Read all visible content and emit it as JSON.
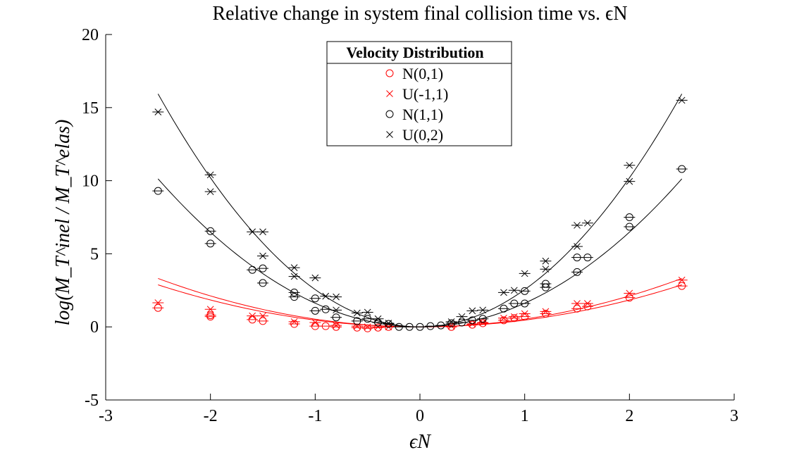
{
  "chart_data": {
    "type": "scatter",
    "title": "Relative change in system final collision time vs. ϵN",
    "xlabel": "ϵN",
    "ylabel": "log(M_T^inel / M_T^elas)",
    "xlim": [
      -3,
      3
    ],
    "ylim": [
      -5,
      20
    ],
    "xticks": [
      "-3",
      "-2",
      "-1",
      "0",
      "1",
      "2",
      "3"
    ],
    "yticks": [
      "-5",
      "0",
      "5",
      "10",
      "15",
      "20"
    ],
    "legend_title": "Velocity Distribution",
    "legend_position": "top-center",
    "colors": {
      "red": "#ff0000",
      "black": "#000000"
    },
    "series": [
      {
        "name": "N(0,1)",
        "marker": "circle",
        "color": "#ff0000",
        "fit_coeff": 0.46,
        "points": [
          [
            -2.5,
            1.3
          ],
          [
            -2.0,
            0.8
          ],
          [
            -2.0,
            0.7
          ],
          [
            -1.6,
            0.5
          ],
          [
            -1.5,
            0.4
          ],
          [
            -1.2,
            0.2
          ],
          [
            -1.0,
            0.05
          ],
          [
            -0.9,
            0.05
          ],
          [
            -0.8,
            0.0
          ],
          [
            -0.6,
            -0.05
          ],
          [
            -0.5,
            -0.1
          ],
          [
            -0.4,
            -0.05
          ],
          [
            -0.3,
            0.0
          ],
          [
            0.3,
            0.0
          ],
          [
            0.5,
            0.15
          ],
          [
            0.6,
            0.25
          ],
          [
            0.8,
            0.45
          ],
          [
            0.9,
            0.6
          ],
          [
            1.0,
            0.7
          ],
          [
            1.2,
            0.9
          ],
          [
            1.5,
            1.25
          ],
          [
            1.6,
            1.4
          ],
          [
            2.0,
            2.0
          ],
          [
            2.5,
            2.8
          ]
        ]
      },
      {
        "name": "U(-1,1)",
        "marker": "x",
        "color": "#ff0000",
        "fit_coeff": 0.53,
        "points": [
          [
            -2.5,
            1.65
          ],
          [
            -2.0,
            1.2
          ],
          [
            -1.6,
            0.75
          ],
          [
            -1.5,
            0.75
          ],
          [
            -1.2,
            0.35
          ],
          [
            -1.0,
            0.3
          ],
          [
            -0.8,
            0.1
          ],
          [
            -0.6,
            0.05
          ],
          [
            -0.5,
            0.0
          ],
          [
            -0.4,
            0.0
          ],
          [
            -0.3,
            0.0
          ],
          [
            0.3,
            0.05
          ],
          [
            0.5,
            0.2
          ],
          [
            0.6,
            0.3
          ],
          [
            0.8,
            0.6
          ],
          [
            0.9,
            0.7
          ],
          [
            1.0,
            0.9
          ],
          [
            1.2,
            1.05
          ],
          [
            1.5,
            1.6
          ],
          [
            1.6,
            1.6
          ],
          [
            2.0,
            2.3
          ],
          [
            2.5,
            3.2
          ]
        ]
      },
      {
        "name": "N(1,1)",
        "marker": "circle",
        "color": "#000000",
        "fit_coeff": 1.62,
        "points": [
          [
            -2.5,
            9.3
          ],
          [
            -2.0,
            6.55
          ],
          [
            -2.0,
            5.7
          ],
          [
            -1.6,
            3.9
          ],
          [
            -1.5,
            4.0
          ],
          [
            -1.5,
            3.0
          ],
          [
            -1.2,
            2.35
          ],
          [
            -1.2,
            2.05
          ],
          [
            -1.0,
            1.95
          ],
          [
            -1.0,
            1.1
          ],
          [
            -0.9,
            1.2
          ],
          [
            -0.8,
            0.65
          ],
          [
            -0.6,
            0.4
          ],
          [
            -0.5,
            0.55
          ],
          [
            -0.4,
            0.3
          ],
          [
            -0.3,
            0.2
          ],
          [
            -0.2,
            0.0
          ],
          [
            -0.1,
            0.0
          ],
          [
            0.0,
            0.0
          ],
          [
            0.1,
            0.05
          ],
          [
            0.2,
            0.1
          ],
          [
            0.3,
            0.25
          ],
          [
            0.4,
            0.3
          ],
          [
            0.5,
            0.45
          ],
          [
            0.6,
            0.55
          ],
          [
            0.8,
            1.25
          ],
          [
            0.9,
            1.6
          ],
          [
            1.0,
            1.6
          ],
          [
            1.0,
            2.45
          ],
          [
            1.2,
            2.7
          ],
          [
            1.2,
            2.95
          ],
          [
            1.5,
            3.75
          ],
          [
            1.5,
            4.75
          ],
          [
            1.6,
            4.75
          ],
          [
            2.0,
            6.85
          ],
          [
            2.0,
            7.5
          ],
          [
            2.5,
            10.8
          ]
        ]
      },
      {
        "name": "U(0,2)",
        "marker": "x",
        "color": "#000000",
        "fit_coeff": 2.55,
        "points": [
          [
            -2.5,
            14.7
          ],
          [
            -2.0,
            10.4
          ],
          [
            -2.0,
            9.25
          ],
          [
            -1.6,
            6.5
          ],
          [
            -1.5,
            6.5
          ],
          [
            -1.5,
            4.85
          ],
          [
            -1.2,
            4.05
          ],
          [
            -1.2,
            3.45
          ],
          [
            -1.0,
            3.35
          ],
          [
            -0.9,
            2.1
          ],
          [
            -0.8,
            2.05
          ],
          [
            -0.8,
            1.15
          ],
          [
            -0.6,
            0.95
          ],
          [
            -0.5,
            1.0
          ],
          [
            -0.4,
            0.55
          ],
          [
            -0.3,
            0.25
          ],
          [
            0.3,
            0.35
          ],
          [
            0.4,
            0.7
          ],
          [
            0.5,
            1.1
          ],
          [
            0.6,
            1.15
          ],
          [
            0.8,
            2.35
          ],
          [
            0.9,
            2.5
          ],
          [
            1.0,
            3.65
          ],
          [
            1.2,
            3.95
          ],
          [
            1.2,
            4.5
          ],
          [
            1.5,
            5.5
          ],
          [
            1.5,
            6.95
          ],
          [
            1.6,
            7.1
          ],
          [
            2.0,
            9.95
          ],
          [
            2.0,
            11.05
          ],
          [
            2.5,
            15.5
          ]
        ]
      }
    ]
  }
}
